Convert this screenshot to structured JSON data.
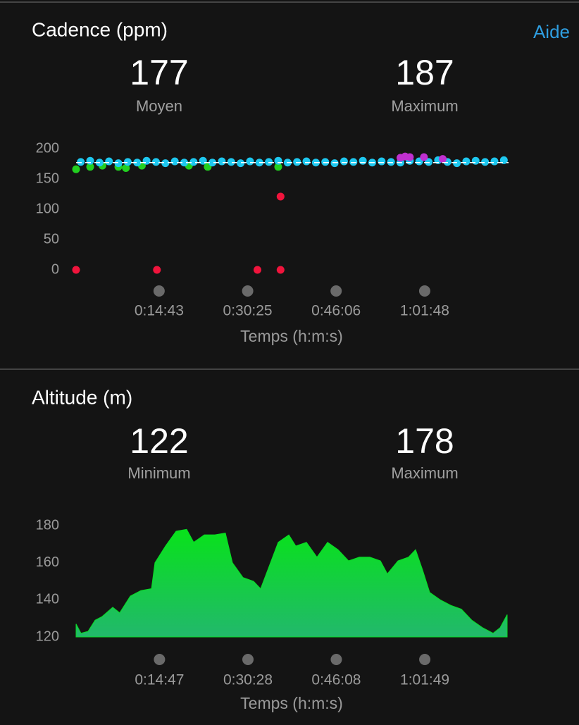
{
  "help_link": "Aide",
  "chart_data": [
    {
      "type": "scatter",
      "title": "Cadence (ppm)",
      "stats": [
        {
          "value": 177,
          "label": "Moyen"
        },
        {
          "value": 187,
          "label": "Maximum"
        }
      ],
      "mean_line": true,
      "x_label": "Temps (h:m:s)",
      "xlim": [
        0,
        4600
      ],
      "ylim": [
        0,
        200
      ],
      "yticks": [
        0,
        50,
        100,
        150,
        200
      ],
      "xticks": [
        {
          "value": 883,
          "label": "0:14:43"
        },
        {
          "value": 1825,
          "label": "0:30:25"
        },
        {
          "value": 2766,
          "label": "0:46:06"
        },
        {
          "value": 3708,
          "label": "1:01:48"
        }
      ],
      "series": [
        {
          "color": "#f0143c",
          "x": [
            0,
            860,
            1929,
            2175,
            2175
          ],
          "values": [
            0,
            0,
            0,
            0,
            121
          ]
        },
        {
          "color": "#22d020",
          "x": [
            0,
            150,
            280,
            450,
            530,
            700,
            1200,
            1400,
            2150
          ],
          "values": [
            166,
            170,
            172,
            170,
            168,
            172,
            172,
            170,
            170
          ]
        },
        {
          "color": "#1ec8f0",
          "x": [
            50,
            150,
            250,
            350,
            450,
            550,
            650,
            750,
            850,
            950,
            1050,
            1150,
            1250,
            1350,
            1450,
            1550,
            1650,
            1750,
            1850,
            1950,
            2050,
            2150,
            2250,
            2350,
            2450,
            2550,
            2650,
            2750,
            2850,
            2950,
            3050,
            3150,
            3250,
            3350,
            3450,
            3550,
            3650,
            3750,
            3850,
            3950,
            4050,
            4150,
            4250,
            4350,
            4450,
            4550
          ],
          "values": [
            178,
            180,
            177,
            179,
            176,
            178,
            177,
            180,
            178,
            176,
            179,
            177,
            178,
            180,
            177,
            179,
            178,
            176,
            179,
            177,
            178,
            180,
            177,
            178,
            179,
            177,
            178,
            176,
            179,
            178,
            180,
            177,
            179,
            178,
            177,
            180,
            179,
            178,
            181,
            178,
            176,
            179,
            180,
            178,
            179,
            181
          ]
        },
        {
          "color": "#c030d0",
          "x": [
            3450,
            3500,
            3550,
            3700,
            3900
          ],
          "values": [
            185,
            187,
            186,
            186,
            183
          ]
        }
      ]
    },
    {
      "type": "area",
      "title": "Altitude (m)",
      "stats": [
        {
          "value": 122,
          "label": "Minimum"
        },
        {
          "value": 178,
          "label": "Maximum"
        }
      ],
      "x_label": "Temps (h:m:s)",
      "xlim": [
        0,
        4600
      ],
      "ylim": [
        120,
        180
      ],
      "yticks": [
        120,
        140,
        160,
        180
      ],
      "xticks": [
        {
          "value": 887,
          "label": "0:14:47"
        },
        {
          "value": 1828,
          "label": "0:30:28"
        },
        {
          "value": 2768,
          "label": "0:46:08"
        },
        {
          "value": 3709,
          "label": "1:01:49"
        }
      ],
      "color": "#08dc24",
      "x": [
        0,
        52,
        127,
        202,
        277,
        390,
        464,
        577,
        689,
        802,
        839,
        951,
        1064,
        1176,
        1251,
        1364,
        1476,
        1588,
        1663,
        1776,
        1888,
        1963,
        2038,
        2150,
        2263,
        2337,
        2450,
        2562,
        2675,
        2787,
        2899,
        3012,
        3124,
        3237,
        3311,
        3424,
        3536,
        3611,
        3686,
        3761,
        3873,
        3986,
        4098,
        4210,
        4323,
        4435,
        4510,
        4585
      ],
      "values": [
        127,
        122,
        123,
        129,
        131,
        136,
        133,
        142,
        145,
        146,
        160,
        169,
        177,
        178,
        171,
        175,
        175,
        176,
        160,
        152,
        150,
        146,
        156,
        171,
        175,
        169,
        171,
        163,
        171,
        167,
        161,
        163,
        163,
        161,
        154,
        161,
        163,
        167,
        156,
        144,
        140,
        137,
        135,
        129,
        125,
        122,
        125,
        132
      ]
    }
  ]
}
